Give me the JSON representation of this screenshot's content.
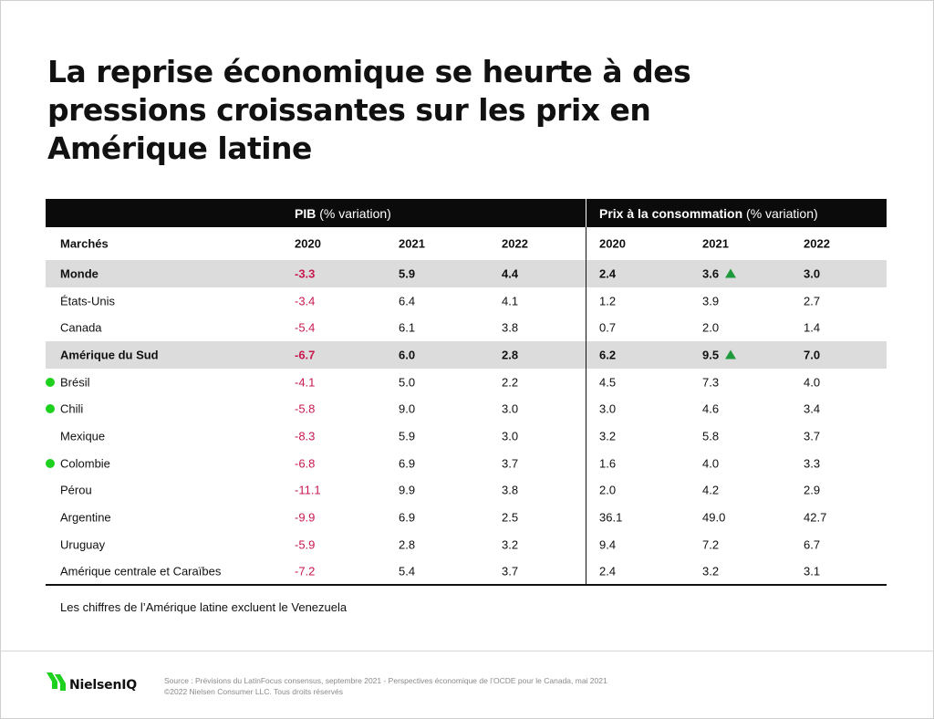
{
  "title_lines": [
    "La reprise économique se heurte à des",
    "pressions croissantes sur les prix en",
    "Amérique latine"
  ],
  "group_headers": {
    "gdp_bold": "PIB",
    "gdp_rest": " (% variation)",
    "cpi_bold": "Prix à la consommation",
    "cpi_rest": " (% variation)"
  },
  "column_headers": {
    "market": "Marchés",
    "gdp_years": [
      "2020",
      "2021",
      "2022"
    ],
    "cpi_years": [
      "2020",
      "2021",
      "2022"
    ]
  },
  "colors": {
    "negative": "#c8194f",
    "highlight_row": "#dcdcdc",
    "dot": "#1fd11f",
    "up_arrow": "#1e9a3c"
  },
  "chart_data": {
    "type": "table",
    "columns": [
      "Marchés",
      "PIB 2020",
      "PIB 2021",
      "PIB 2022",
      "Prix 2020",
      "Prix 2021",
      "Prix 2022"
    ],
    "rows": [
      {
        "market": "Monde",
        "bold": true,
        "highlight": true,
        "dot": false,
        "gdp": [
          "-3.3",
          "5.9",
          "4.4"
        ],
        "cpi": [
          "2.4",
          "3.6",
          "3.0"
        ],
        "cpi_up": [
          false,
          true,
          false
        ]
      },
      {
        "market": "États-Unis",
        "bold": false,
        "highlight": false,
        "dot": false,
        "gdp": [
          "-3.4",
          "6.4",
          "4.1"
        ],
        "cpi": [
          "1.2",
          "3.9",
          "2.7"
        ],
        "cpi_up": [
          false,
          false,
          false
        ]
      },
      {
        "market": "Canada",
        "bold": false,
        "highlight": false,
        "dot": false,
        "gdp": [
          "-5.4",
          "6.1",
          "3.8"
        ],
        "cpi": [
          "0.7",
          "2.0",
          "1.4"
        ],
        "cpi_up": [
          false,
          false,
          false
        ]
      },
      {
        "market": "Amérique du Sud",
        "bold": true,
        "highlight": true,
        "dot": false,
        "gdp": [
          "-6.7",
          "6.0",
          "2.8"
        ],
        "cpi": [
          "6.2",
          "9.5",
          "7.0"
        ],
        "cpi_up": [
          false,
          true,
          false
        ]
      },
      {
        "market": "Brésil",
        "bold": false,
        "highlight": false,
        "dot": true,
        "gdp": [
          "-4.1",
          "5.0",
          "2.2"
        ],
        "cpi": [
          "4.5",
          "7.3",
          "4.0"
        ],
        "cpi_up": [
          false,
          false,
          false
        ]
      },
      {
        "market": "Chili",
        "bold": false,
        "highlight": false,
        "dot": true,
        "gdp": [
          "-5.8",
          "9.0",
          "3.0"
        ],
        "cpi": [
          "3.0",
          "4.6",
          "3.4"
        ],
        "cpi_up": [
          false,
          false,
          false
        ]
      },
      {
        "market": "Mexique",
        "bold": false,
        "highlight": false,
        "dot": false,
        "gdp": [
          "-8.3",
          "5.9",
          "3.0"
        ],
        "cpi": [
          "3.2",
          "5.8",
          "3.7"
        ],
        "cpi_up": [
          false,
          false,
          false
        ]
      },
      {
        "market": "Colombie",
        "bold": false,
        "highlight": false,
        "dot": true,
        "gdp": [
          "-6.8",
          "6.9",
          "3.7"
        ],
        "cpi": [
          "1.6",
          "4.0",
          "3.3"
        ],
        "cpi_up": [
          false,
          false,
          false
        ]
      },
      {
        "market": "Pérou",
        "bold": false,
        "highlight": false,
        "dot": false,
        "gdp": [
          "-11.1",
          "9.9",
          "3.8"
        ],
        "cpi": [
          "2.0",
          "4.2",
          "2.9"
        ],
        "cpi_up": [
          false,
          false,
          false
        ]
      },
      {
        "market": "Argentine",
        "bold": false,
        "highlight": false,
        "dot": false,
        "gdp": [
          "-9.9",
          "6.9",
          "2.5"
        ],
        "cpi": [
          "36.1",
          "49.0",
          "42.7"
        ],
        "cpi_up": [
          false,
          false,
          false
        ]
      },
      {
        "market": "Uruguay",
        "bold": false,
        "highlight": false,
        "dot": false,
        "gdp": [
          "-5.9",
          "2.8",
          "3.2"
        ],
        "cpi": [
          "9.4",
          "7.2",
          "6.7"
        ],
        "cpi_up": [
          false,
          false,
          false
        ]
      },
      {
        "market": "Amérique centrale et Caraïbes",
        "bold": false,
        "highlight": false,
        "dot": false,
        "gdp": [
          "-7.2",
          "5.4",
          "3.7"
        ],
        "cpi": [
          "2.4",
          "3.2",
          "3.1"
        ],
        "cpi_up": [
          false,
          false,
          false
        ]
      }
    ]
  },
  "note": "Les chiffres de l’Amérique latine excluent le Venezuela",
  "footer": {
    "brand": "NielsenIQ",
    "source_line1": "Source : Prévisions du LatinFocus consensus, septembre 2021 - Perspectives économique de l’OCDE pour le Canada, mai 2021",
    "source_line2": "©2022 Nielsen Consumer LLC. Tous droits réservés"
  }
}
